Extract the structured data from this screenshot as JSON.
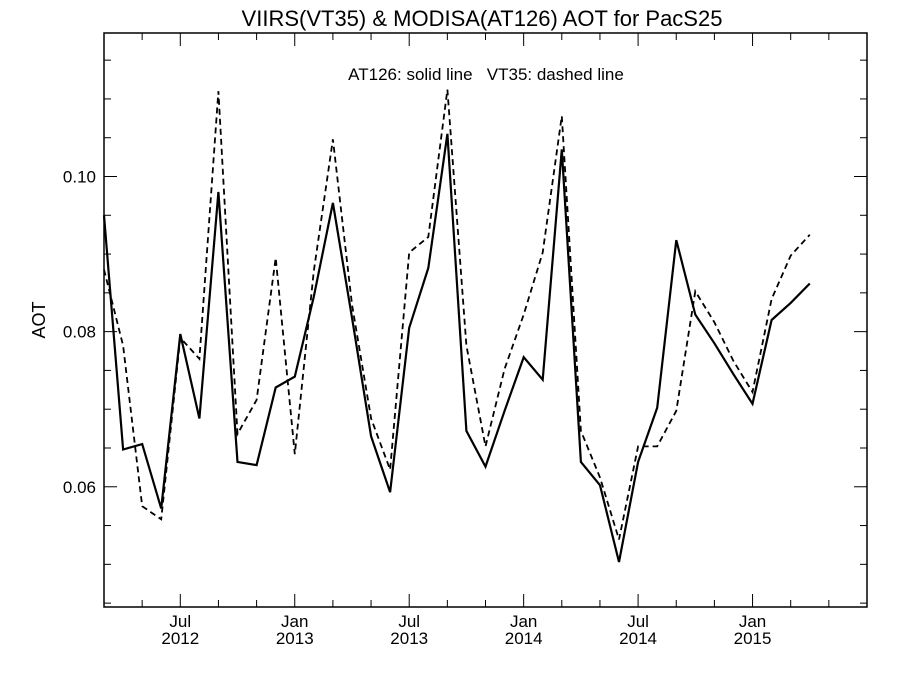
{
  "chart_data": {
    "type": "line",
    "title": "VIIRS(VT35) & MODISA(AT126)  AOT for PacS25",
    "annotation": "AT126: solid line   VT35: dashed line",
    "xlabel": "",
    "ylabel": "AOT",
    "xlim": [
      "2012-03-01",
      "2015-07-01"
    ],
    "ylim": [
      0.0445,
      0.1185
    ],
    "yticks": [
      0.06,
      0.08,
      0.1
    ],
    "ytick_labels": [
      "0.06",
      "0.08",
      "0.10"
    ],
    "xticks": [
      "2012-07-01",
      "2013-01-01",
      "2013-07-01",
      "2014-01-01",
      "2014-07-01",
      "2015-01-01"
    ],
    "xtick_labels": [
      {
        "month": "Jul",
        "year": "2012"
      },
      {
        "month": "Jan",
        "year": "2013"
      },
      {
        "month": "Jul",
        "year": "2013"
      },
      {
        "month": "Jan",
        "year": "2014"
      },
      {
        "month": "Jul",
        "year": "2014"
      },
      {
        "month": "Jan",
        "year": "2015"
      }
    ],
    "series": [
      {
        "name": "AT126",
        "style": "solid",
        "points": [
          [
            "2012-03-01",
            0.095
          ],
          [
            "2012-04-01",
            0.0648
          ],
          [
            "2012-05-01",
            0.0655
          ],
          [
            "2012-06-01",
            0.0572
          ],
          [
            "2012-07-01",
            0.0797
          ],
          [
            "2012-08-01",
            0.0688
          ],
          [
            "2012-09-01",
            0.098
          ],
          [
            "2012-10-01",
            0.0632
          ],
          [
            "2012-11-01",
            0.0628
          ],
          [
            "2012-12-01",
            0.0728
          ],
          [
            "2013-01-01",
            0.0742
          ],
          [
            "2013-02-01",
            0.0845
          ],
          [
            "2013-03-01",
            0.0966
          ],
          [
            "2013-04-01",
            0.0818
          ],
          [
            "2013-05-01",
            0.0665
          ],
          [
            "2013-06-01",
            0.0593
          ],
          [
            "2013-07-01",
            0.0805
          ],
          [
            "2013-08-01",
            0.0882
          ],
          [
            "2013-09-01",
            0.1055
          ],
          [
            "2013-10-01",
            0.0672
          ],
          [
            "2013-11-01",
            0.0626
          ],
          [
            "2013-12-01",
            0.0698
          ],
          [
            "2014-01-01",
            0.0767
          ],
          [
            "2014-02-01",
            0.0738
          ],
          [
            "2014-03-01",
            0.1035
          ],
          [
            "2014-04-01",
            0.0632
          ],
          [
            "2014-05-01",
            0.0602
          ],
          [
            "2014-06-01",
            0.0503
          ],
          [
            "2014-07-01",
            0.0632
          ],
          [
            "2014-08-01",
            0.0702
          ],
          [
            "2014-09-01",
            0.0918
          ],
          [
            "2014-10-01",
            0.0822
          ],
          [
            "2014-11-01",
            0.0785
          ],
          [
            "2014-12-01",
            0.0745
          ],
          [
            "2015-01-01",
            0.0707
          ],
          [
            "2015-02-01",
            0.0815
          ],
          [
            "2015-03-01",
            0.0837
          ],
          [
            "2015-04-01",
            0.0862
          ]
        ]
      },
      {
        "name": "VT35",
        "style": "dashed",
        "points": [
          [
            "2012-03-01",
            0.088
          ],
          [
            "2012-04-01",
            0.0782
          ],
          [
            "2012-05-01",
            0.0575
          ],
          [
            "2012-06-01",
            0.0558
          ],
          [
            "2012-07-01",
            0.0792
          ],
          [
            "2012-08-01",
            0.0765
          ],
          [
            "2012-09-01",
            0.111
          ],
          [
            "2012-10-01",
            0.0668
          ],
          [
            "2012-11-01",
            0.0712
          ],
          [
            "2012-12-01",
            0.0895
          ],
          [
            "2013-01-01",
            0.0642
          ],
          [
            "2013-02-01",
            0.0878
          ],
          [
            "2013-03-01",
            0.1048
          ],
          [
            "2013-04-01",
            0.0835
          ],
          [
            "2013-05-01",
            0.0688
          ],
          [
            "2013-06-01",
            0.0622
          ],
          [
            "2013-07-01",
            0.0902
          ],
          [
            "2013-08-01",
            0.0922
          ],
          [
            "2013-09-01",
            0.1112
          ],
          [
            "2013-10-01",
            0.0782
          ],
          [
            "2013-11-01",
            0.0652
          ],
          [
            "2013-12-01",
            0.0752
          ],
          [
            "2014-01-01",
            0.0822
          ],
          [
            "2014-02-01",
            0.0902
          ],
          [
            "2014-03-01",
            0.1078
          ],
          [
            "2014-04-01",
            0.0672
          ],
          [
            "2014-05-01",
            0.0612
          ],
          [
            "2014-06-01",
            0.0532
          ],
          [
            "2014-07-01",
            0.0652
          ],
          [
            "2014-08-01",
            0.0652
          ],
          [
            "2014-09-01",
            0.0698
          ],
          [
            "2014-10-01",
            0.0852
          ],
          [
            "2014-11-01",
            0.0812
          ],
          [
            "2014-12-01",
            0.0762
          ],
          [
            "2015-01-01",
            0.0722
          ],
          [
            "2015-02-01",
            0.0842
          ],
          [
            "2015-03-01",
            0.0898
          ],
          [
            "2015-04-01",
            0.0925
          ]
        ]
      }
    ],
    "grid": false,
    "legend": "none"
  }
}
